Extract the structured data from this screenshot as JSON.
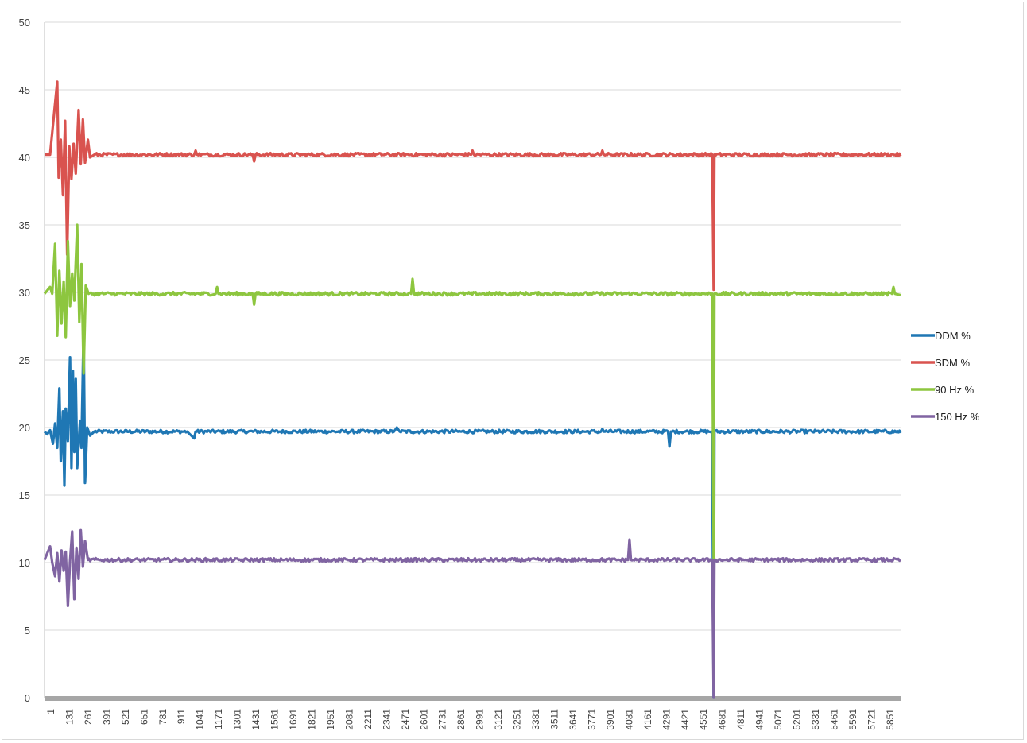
{
  "chart_data": {
    "type": "line",
    "title": "",
    "xlabel": "",
    "ylabel": "",
    "ylim": [
      0,
      50
    ],
    "y_ticks": [
      0,
      5,
      10,
      15,
      20,
      25,
      30,
      35,
      40,
      45,
      50
    ],
    "x_range": [
      1,
      6000
    ],
    "x_tick_labels": [
      "1",
      "131",
      "261",
      "391",
      "521",
      "651",
      "781",
      "911",
      "1041",
      "1171",
      "1301",
      "1431",
      "1561",
      "1691",
      "1821",
      "1951",
      "2081",
      "2211",
      "2341",
      "2471",
      "2601",
      "2731",
      "2861",
      "2991",
      "3121",
      "3251",
      "3381",
      "3511",
      "3641",
      "3771",
      "3901",
      "4031",
      "4161",
      "4291",
      "4421",
      "4551",
      "4681",
      "4811",
      "4941",
      "5071",
      "5201",
      "5331",
      "5461",
      "5591",
      "5721",
      "5851"
    ],
    "grid": "horizontal",
    "legend_position": "right",
    "series": [
      {
        "name": "DDM %",
        "color": "#1f77b4",
        "baseline": 19.7,
        "points": [
          [
            1,
            19.7
          ],
          [
            20,
            19.5
          ],
          [
            40,
            19.8
          ],
          [
            60,
            18.8
          ],
          [
            75,
            20.3
          ],
          [
            90,
            18.5
          ],
          [
            105,
            22.9
          ],
          [
            115,
            17.5
          ],
          [
            130,
            21.2
          ],
          [
            140,
            15.7
          ],
          [
            150,
            21.4
          ],
          [
            165,
            19.0
          ],
          [
            180,
            25.2
          ],
          [
            190,
            17.0
          ],
          [
            200,
            24.2
          ],
          [
            210,
            18.2
          ],
          [
            220,
            23.6
          ],
          [
            230,
            17.0
          ],
          [
            250,
            20.5
          ],
          [
            260,
            18.5
          ],
          [
            275,
            27.3
          ],
          [
            285,
            15.9
          ],
          [
            300,
            20.0
          ],
          [
            320,
            19.4
          ],
          [
            350,
            19.7
          ],
          [
            1000,
            19.7
          ],
          [
            1050,
            19.2
          ],
          [
            1060,
            19.7
          ],
          [
            2450,
            19.7
          ],
          [
            2470,
            20.0
          ],
          [
            2490,
            19.7
          ],
          [
            3900,
            19.7
          ],
          [
            3910,
            19.9
          ],
          [
            3920,
            19.7
          ],
          [
            4370,
            19.7
          ],
          [
            4380,
            18.6
          ],
          [
            4390,
            19.7
          ],
          [
            4680,
            19.7
          ],
          [
            4690,
            0.0
          ],
          [
            4695,
            19.7
          ],
          [
            6000,
            19.6
          ]
        ]
      },
      {
        "name": "SDM %",
        "color": "#d9534f",
        "baseline": 40.2,
        "points": [
          [
            1,
            40.2
          ],
          [
            40,
            40.2
          ],
          [
            90,
            45.6
          ],
          [
            100,
            38.5
          ],
          [
            115,
            41.3
          ],
          [
            130,
            37.2
          ],
          [
            145,
            42.7
          ],
          [
            160,
            32.8
          ],
          [
            175,
            40.8
          ],
          [
            190,
            38.4
          ],
          [
            205,
            41.0
          ],
          [
            220,
            38.8
          ],
          [
            240,
            43.5
          ],
          [
            255,
            39.5
          ],
          [
            270,
            42.8
          ],
          [
            285,
            39.6
          ],
          [
            305,
            41.3
          ],
          [
            320,
            40.0
          ],
          [
            350,
            40.2
          ],
          [
            1050,
            40.2
          ],
          [
            1060,
            40.5
          ],
          [
            1070,
            40.2
          ],
          [
            1460,
            40.2
          ],
          [
            1470,
            39.7
          ],
          [
            1480,
            40.2
          ],
          [
            2990,
            40.2
          ],
          [
            3000,
            40.5
          ],
          [
            3010,
            40.2
          ],
          [
            3900,
            40.2
          ],
          [
            3910,
            40.5
          ],
          [
            3920,
            40.2
          ],
          [
            4680,
            40.2
          ],
          [
            4690,
            30.2
          ],
          [
            4695,
            40.2
          ],
          [
            6000,
            40.1
          ]
        ]
      },
      {
        "name": "90 Hz %",
        "color": "#8dc63f",
        "baseline": 29.9,
        "points": [
          [
            1,
            29.9
          ],
          [
            40,
            30.4
          ],
          [
            55,
            29.9
          ],
          [
            75,
            33.6
          ],
          [
            90,
            26.8
          ],
          [
            105,
            31.6
          ],
          [
            120,
            27.7
          ],
          [
            135,
            30.8
          ],
          [
            150,
            26.7
          ],
          [
            165,
            33.8
          ],
          [
            180,
            29.0
          ],
          [
            195,
            31.4
          ],
          [
            210,
            29.4
          ],
          [
            230,
            35.0
          ],
          [
            245,
            27.8
          ],
          [
            260,
            32.1
          ],
          [
            275,
            24.0
          ],
          [
            290,
            30.5
          ],
          [
            310,
            29.9
          ],
          [
            1200,
            29.9
          ],
          [
            1210,
            30.4
          ],
          [
            1220,
            29.9
          ],
          [
            1460,
            29.9
          ],
          [
            1470,
            29.1
          ],
          [
            1480,
            29.9
          ],
          [
            2570,
            29.9
          ],
          [
            2580,
            31.0
          ],
          [
            2590,
            29.9
          ],
          [
            4680,
            29.9
          ],
          [
            4690,
            10.2
          ],
          [
            4695,
            29.9
          ],
          [
            5940,
            29.9
          ],
          [
            5950,
            30.4
          ],
          [
            5960,
            29.9
          ],
          [
            6000,
            29.8
          ]
        ]
      },
      {
        "name": "150 Hz %",
        "color": "#8064a2",
        "baseline": 10.2,
        "points": [
          [
            1,
            10.2
          ],
          [
            40,
            11.2
          ],
          [
            55,
            10.0
          ],
          [
            75,
            9.0
          ],
          [
            90,
            10.7
          ],
          [
            105,
            8.6
          ],
          [
            120,
            10.9
          ],
          [
            135,
            9.4
          ],
          [
            150,
            10.8
          ],
          [
            165,
            6.8
          ],
          [
            180,
            10.1
          ],
          [
            195,
            12.3
          ],
          [
            210,
            7.3
          ],
          [
            225,
            11.1
          ],
          [
            240,
            8.8
          ],
          [
            255,
            12.4
          ],
          [
            270,
            9.7
          ],
          [
            285,
            11.6
          ],
          [
            305,
            10.2
          ],
          [
            4090,
            10.2
          ],
          [
            4100,
            11.7
          ],
          [
            4110,
            10.2
          ],
          [
            4680,
            10.2
          ],
          [
            4690,
            0.0
          ],
          [
            4695,
            10.2
          ],
          [
            6000,
            10.2
          ]
        ]
      }
    ]
  }
}
